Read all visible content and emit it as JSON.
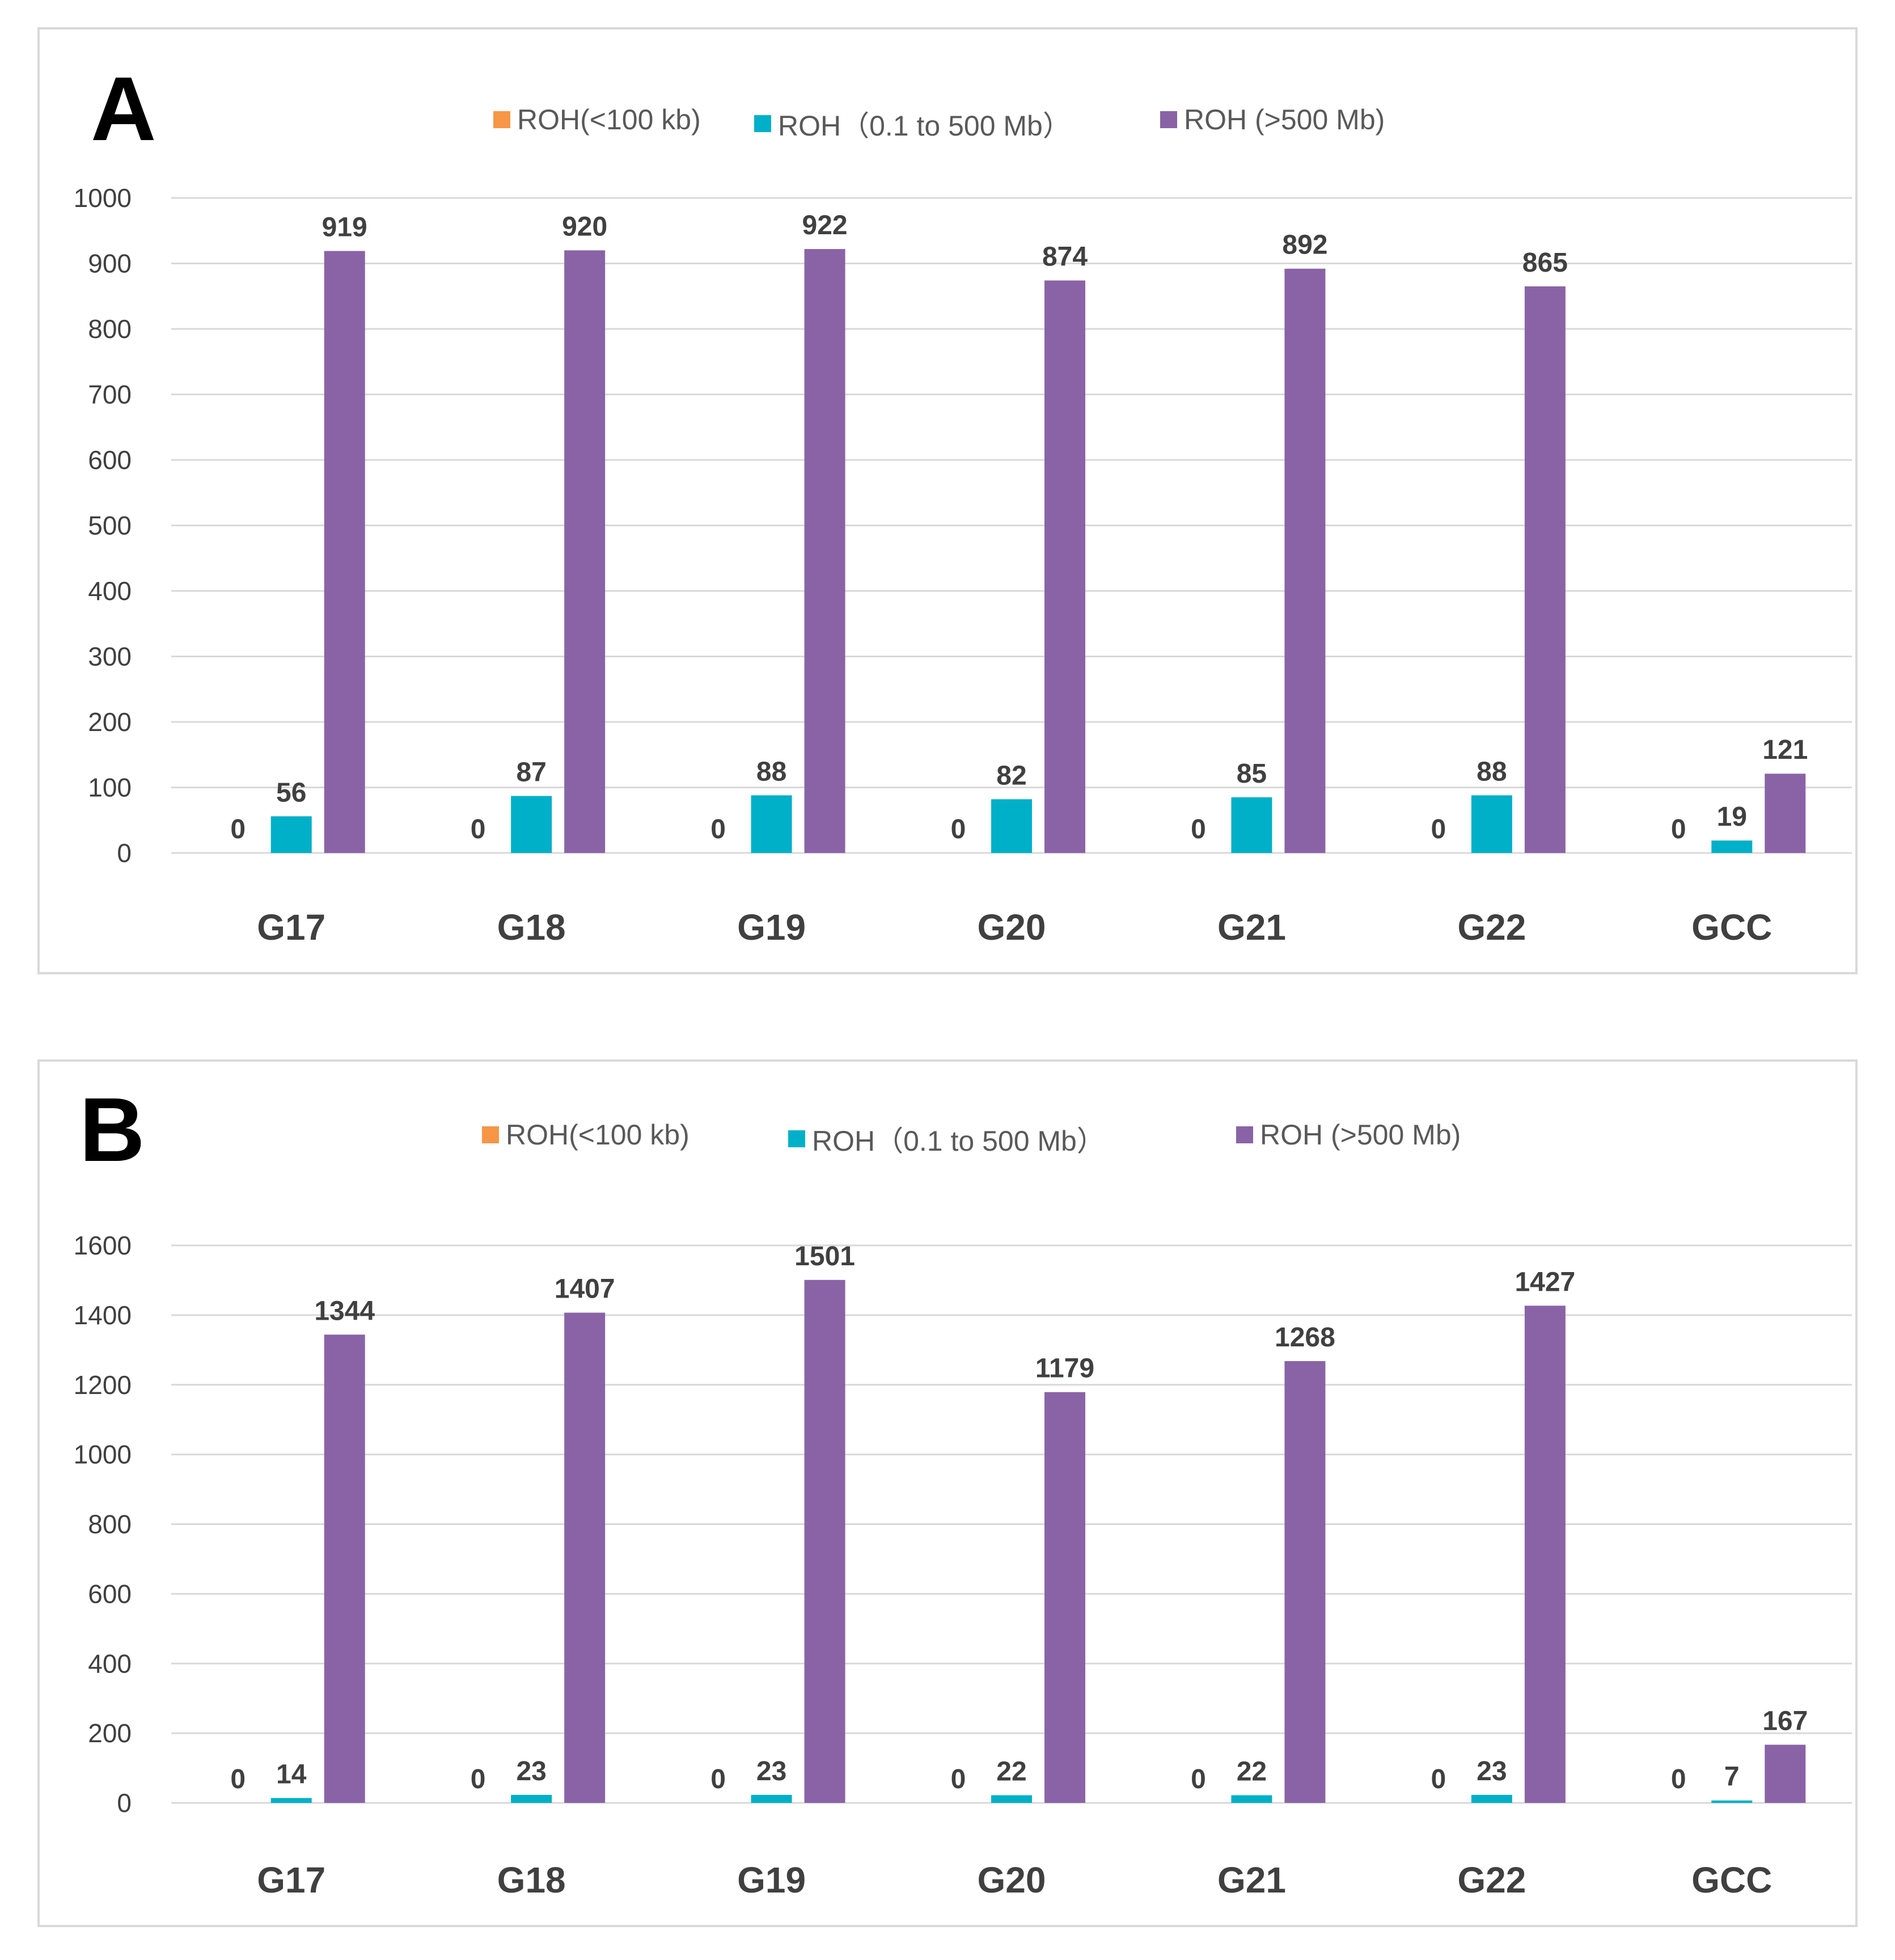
{
  "chart_data": [
    {
      "type": "bar",
      "panel_label": "A",
      "categories": [
        "G17",
        "G18",
        "G19",
        "G20",
        "G21",
        "G22",
        "GCC"
      ],
      "series": [
        {
          "name": "ROH(<100 kb)",
          "color": "#f79646",
          "values": [
            0,
            0,
            0,
            0,
            0,
            0,
            0
          ]
        },
        {
          "name": "ROH（0.1 to 500 Mb）",
          "color": "#00b0c8",
          "values": [
            56,
            87,
            88,
            82,
            85,
            88,
            19
          ]
        },
        {
          "name": "ROH (>500 Mb)",
          "color": "#8a63a6",
          "values": [
            919,
            920,
            922,
            874,
            892,
            865,
            121
          ]
        }
      ],
      "yticks": [
        "0",
        "100",
        "200",
        "300",
        "400",
        "500",
        "600",
        "700",
        "800",
        "900",
        "1000"
      ],
      "ylim": [
        0,
        1000
      ],
      "grid": true,
      "legend_position": "top"
    },
    {
      "type": "bar",
      "panel_label": "B",
      "categories": [
        "G17",
        "G18",
        "G19",
        "G20",
        "G21",
        "G22",
        "GCC"
      ],
      "series": [
        {
          "name": "ROH(<100 kb)",
          "color": "#f79646",
          "values": [
            0,
            0,
            0,
            0,
            0,
            0,
            0
          ]
        },
        {
          "name": "ROH（0.1 to 500 Mb）",
          "color": "#00b0c8",
          "values": [
            14,
            23,
            23,
            22,
            22,
            23,
            7
          ]
        },
        {
          "name": "ROH (>500 Mb)",
          "color": "#8a63a6",
          "values": [
            1344,
            1407,
            1501,
            1179,
            1268,
            1427,
            167
          ]
        }
      ],
      "yticks": [
        "0",
        "200",
        "400",
        "600",
        "800",
        "1000",
        "1200",
        "1400",
        "1600"
      ],
      "ylim": [
        0,
        1600
      ],
      "grid": true,
      "legend_position": "top"
    }
  ]
}
